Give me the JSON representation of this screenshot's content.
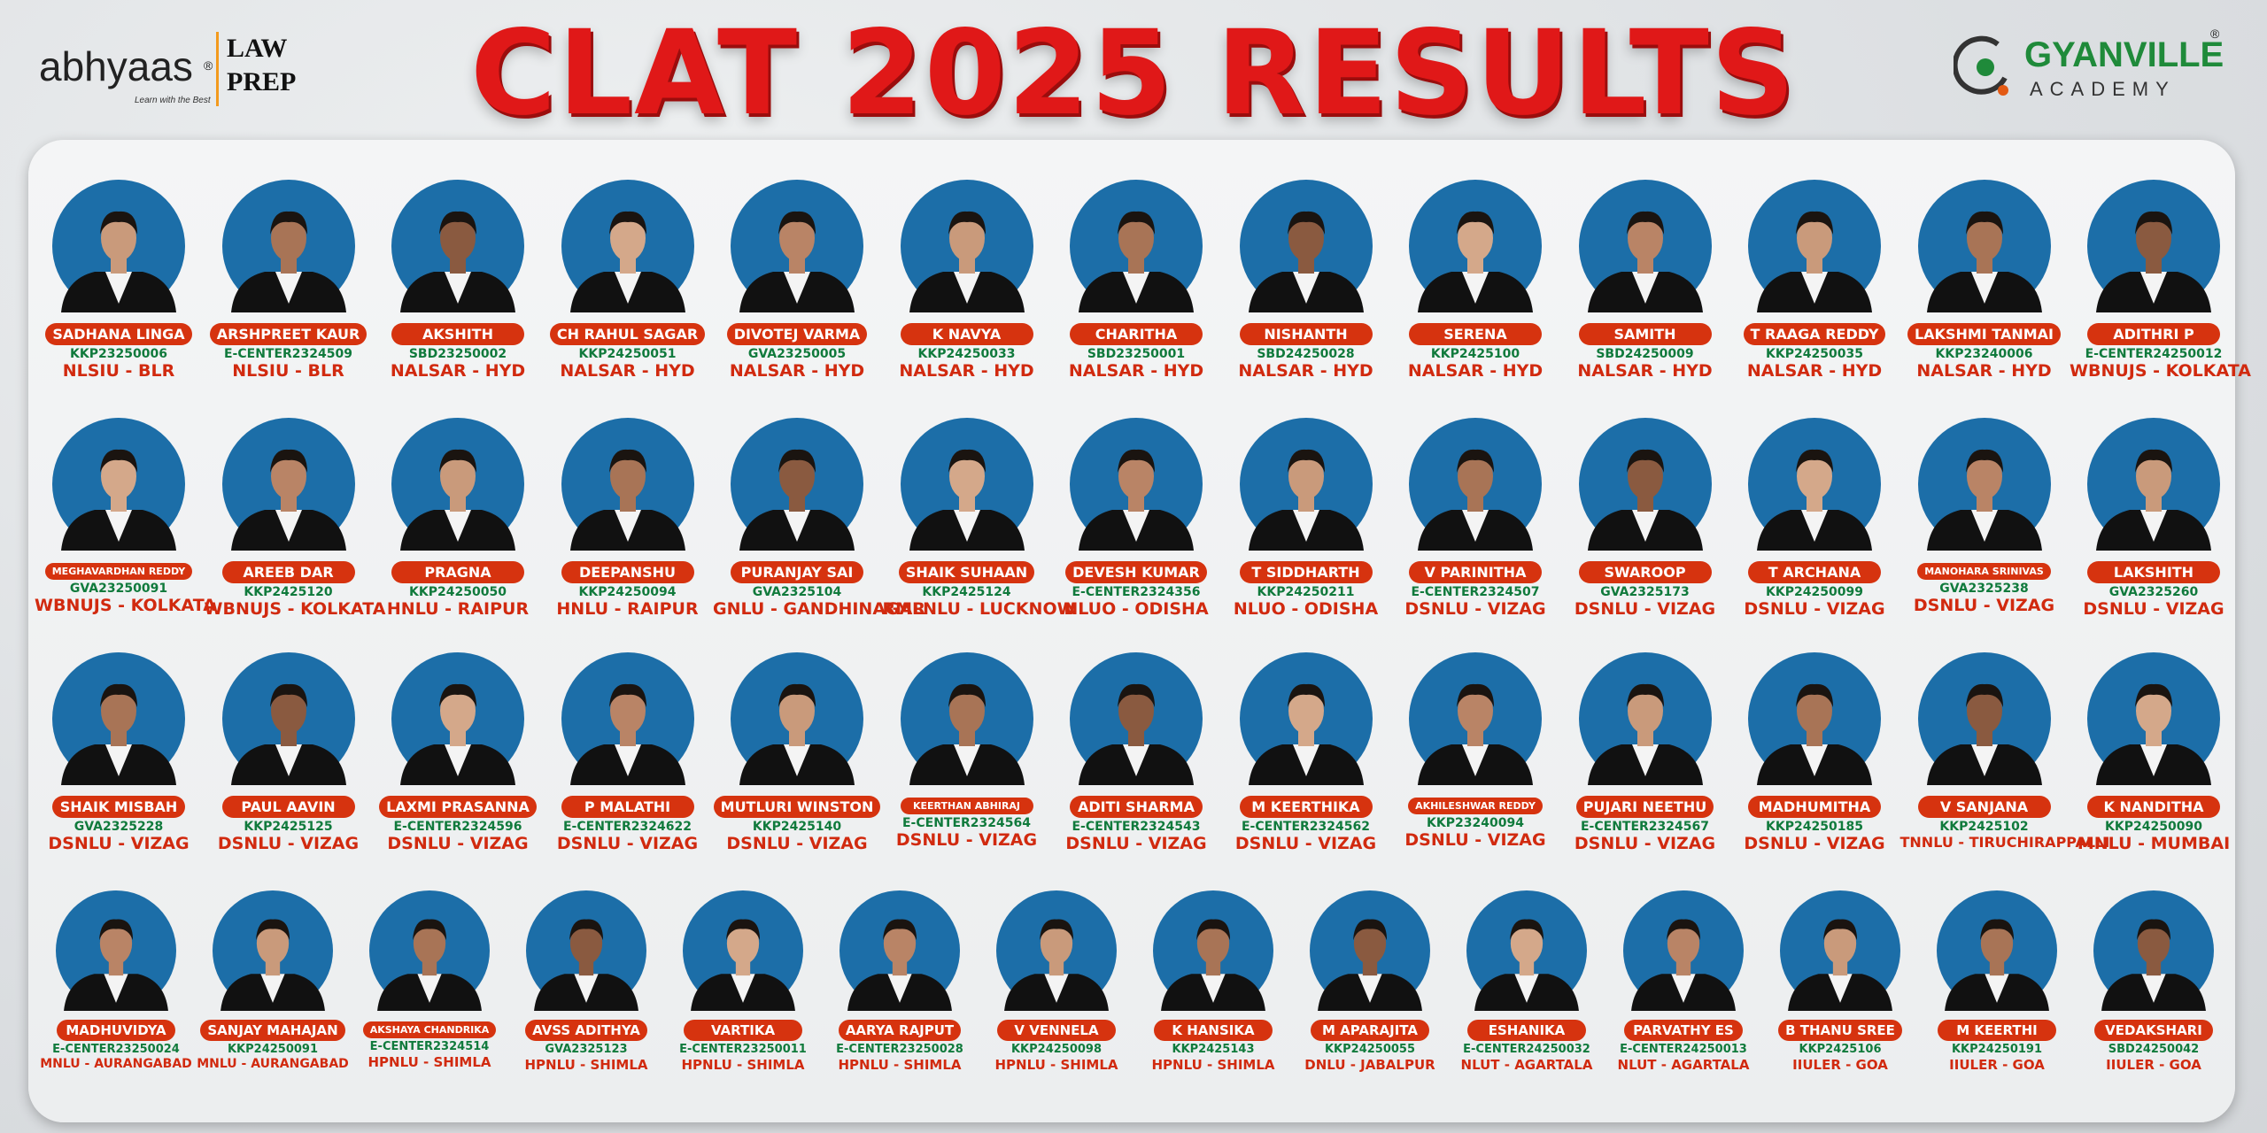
{
  "header": {
    "brand": "abhyaas",
    "brand_mark": "®",
    "tagline": "Learn with the Best",
    "law": "LAW",
    "prep": "PREP",
    "title": "CLAT 2025 RESULTS",
    "academy_name": "GYANVILLE",
    "academy_word": "ACADEMY",
    "academy_mark": "®"
  },
  "rows": [
    [
      {
        "name": "SADHANA LINGA",
        "roll": "KKP23250006",
        "college": "NLSIU - BLR"
      },
      {
        "name": "ARSHPREET KAUR",
        "roll": "E-CENTER2324509",
        "college": "NLSIU - BLR"
      },
      {
        "name": "AKSHITH",
        "roll": "SBD23250002",
        "college": "NALSAR - HYD"
      },
      {
        "name": "CH RAHUL SAGAR",
        "roll": "KKP24250051",
        "college": "NALSAR - HYD"
      },
      {
        "name": "DIVOTEJ VARMA",
        "roll": "GVA23250005",
        "college": "NALSAR - HYD"
      },
      {
        "name": "K NAVYA",
        "roll": "KKP24250033",
        "college": "NALSAR - HYD"
      },
      {
        "name": "CHARITHA",
        "roll": "SBD23250001",
        "college": "NALSAR - HYD"
      },
      {
        "name": "NISHANTH",
        "roll": "SBD24250028",
        "college": "NALSAR - HYD"
      },
      {
        "name": "SERENA",
        "roll": "KKP2425100",
        "college": "NALSAR - HYD"
      },
      {
        "name": "SAMITH",
        "roll": "SBD24250009",
        "college": "NALSAR - HYD"
      },
      {
        "name": "T RAAGA REDDY",
        "roll": "KKP24250035",
        "college": "NALSAR - HYD"
      },
      {
        "name": "LAKSHMI TANMAI",
        "roll": "KKP23240006",
        "college": "NALSAR - HYD"
      },
      {
        "name": "ADITHRI P",
        "roll": "E-CENTER24250012",
        "college": "WBNUJS - KOLKATA"
      }
    ],
    [
      {
        "name": "MEGHAVARDHAN REDDY",
        "roll": "GVA23250091",
        "college": "WBNUJS - KOLKATA"
      },
      {
        "name": "AREEB DAR",
        "roll": "KKP2425120",
        "college": "WBNUJS - KOLKATA"
      },
      {
        "name": "PRAGNA",
        "roll": "KKP24250050",
        "college": "HNLU - RAIPUR"
      },
      {
        "name": "DEEPANSHU",
        "roll": "KKP24250094",
        "college": "HNLU - RAIPUR"
      },
      {
        "name": "PURANJAY SAI",
        "roll": "GVA2325104",
        "college": "GNLU - GANDHINAGAR"
      },
      {
        "name": "SHAIK SUHAAN",
        "roll": "KKP2425124",
        "college": "RMLNLU - LUCKNOW"
      },
      {
        "name": "DEVESH KUMAR",
        "roll": "E-CENTER2324356",
        "college": "NLUO - ODISHA"
      },
      {
        "name": "T SIDDHARTH",
        "roll": "KKP24250211",
        "college": "NLUO - ODISHA"
      },
      {
        "name": "V PARINITHA",
        "roll": "E-CENTER2324507",
        "college": "DSNLU - VIZAG"
      },
      {
        "name": "SWAROOP",
        "roll": "GVA2325173",
        "college": "DSNLU - VIZAG"
      },
      {
        "name": "T ARCHANA",
        "roll": "KKP24250099",
        "college": "DSNLU - VIZAG"
      },
      {
        "name": "MANOHARA SRINIVAS",
        "roll": "GVA2325238",
        "college": "DSNLU - VIZAG"
      },
      {
        "name": "LAKSHITH",
        "roll": "GVA2325260",
        "college": "DSNLU - VIZAG"
      }
    ],
    [
      {
        "name": "SHAIK MISBAH",
        "roll": "GVA2325228",
        "college": "DSNLU - VIZAG"
      },
      {
        "name": "PAUL AAVIN",
        "roll": "KKP2425125",
        "college": "DSNLU - VIZAG"
      },
      {
        "name": "LAXMI PRASANNA",
        "roll": "E-CENTER2324596",
        "college": "DSNLU - VIZAG"
      },
      {
        "name": "P MALATHI",
        "roll": "E-CENTER2324622",
        "college": "DSNLU - VIZAG"
      },
      {
        "name": "MUTLURI WINSTON",
        "roll": "KKP2425140",
        "college": "DSNLU - VIZAG"
      },
      {
        "name": "KEERTHAN ABHIRAJ",
        "roll": "E-CENTER2324564",
        "college": "DSNLU - VIZAG"
      },
      {
        "name": "ADITI SHARMA",
        "roll": "E-CENTER2324543",
        "college": "DSNLU - VIZAG"
      },
      {
        "name": "M KEERTHIKA",
        "roll": "E-CENTER2324562",
        "college": "DSNLU - VIZAG"
      },
      {
        "name": "AKHILESHWAR REDDY",
        "roll": "KKP23240094",
        "college": "DSNLU - VIZAG"
      },
      {
        "name": "PUJARI NEETHU",
        "roll": "E-CENTER2324567",
        "college": "DSNLU - VIZAG"
      },
      {
        "name": "MADHUMITHA",
        "roll": "KKP24250185",
        "college": "DSNLU - VIZAG"
      },
      {
        "name": "V SANJANA",
        "roll": "KKP2425102",
        "college": "TNNLU - TIRUCHIRAPPALLI"
      },
      {
        "name": "K NANDITHA",
        "roll": "KKP24250090",
        "college": "MNLU - MUMBAI"
      }
    ],
    [
      {
        "name": "MADHUVIDYA",
        "roll": "E-CENTER23250024",
        "college": "MNLU - AURANGABAD"
      },
      {
        "name": "SANJAY MAHAJAN",
        "roll": "KKP24250091",
        "college": "MNLU - AURANGABAD"
      },
      {
        "name": "AKSHAYA CHANDRIKA",
        "roll": "E-CENTER2324514",
        "college": "HPNLU - SHIMLA"
      },
      {
        "name": "AVSS ADITHYA",
        "roll": "GVA2325123",
        "college": "HPNLU - SHIMLA"
      },
      {
        "name": "VARTIKA",
        "roll": "E-CENTER23250011",
        "college": "HPNLU - SHIMLA"
      },
      {
        "name": "AARYA RAJPUT",
        "roll": "E-CENTER23250028",
        "college": "HPNLU - SHIMLA"
      },
      {
        "name": "V VENNELA",
        "roll": "KKP24250098",
        "college": "HPNLU - SHIMLA"
      },
      {
        "name": "K HANSIKA",
        "roll": "KKP2425143",
        "college": "HPNLU - SHIMLA"
      },
      {
        "name": "M APARAJITA",
        "roll": "KKP24250055",
        "college": "DNLU - JABALPUR"
      },
      {
        "name": "ESHANIKA",
        "roll": "E-CENTER24250032",
        "college": "NLUT - AGARTALA"
      },
      {
        "name": "PARVATHY ES",
        "roll": "E-CENTER24250013",
        "college": "NLUT - AGARTALA"
      },
      {
        "name": "B THANU SREE",
        "roll": "KKP2425106",
        "college": "IIULER - GOA"
      },
      {
        "name": "M KEERTHI",
        "roll": "KKP24250191",
        "college": "IIULER - GOA"
      },
      {
        "name": "VEDAKSHARI",
        "roll": "SBD24250042",
        "college": "IIULER - GOA"
      }
    ]
  ]
}
